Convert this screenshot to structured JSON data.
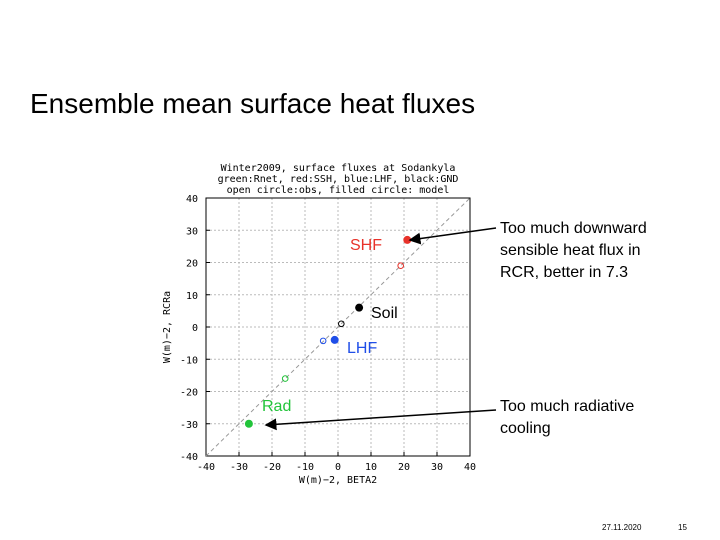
{
  "slide": {
    "title": "Ensemble mean surface heat fluxes",
    "date": "27.11.2020",
    "page": "15"
  },
  "chart_data": {
    "type": "scatter",
    "title": [
      "Winter2009, surface fluxes at Sodankyla",
      "green:Rnet, red:SSH, blue:LHF, black:GND",
      "open circle:obs, filled circle: model"
    ],
    "xlabel": "W(m)−2, BETA2",
    "ylabel": "W(m)−2, RCRa",
    "xlim": [
      -40,
      40
    ],
    "ylim": [
      -40,
      40
    ],
    "xticks": [
      -40,
      -30,
      -20,
      -10,
      0,
      10,
      20,
      30,
      40
    ],
    "yticks": [
      -40,
      -30,
      -20,
      -10,
      0,
      10,
      20,
      30,
      40
    ],
    "grid": true,
    "series": [
      {
        "color": "#e8322a",
        "marker": "filled",
        "x": [
          21
        ],
        "values": [
          27
        ]
      },
      {
        "color": "#e8322a",
        "marker": "open",
        "x": [
          19
        ],
        "values": [
          19
        ]
      },
      {
        "color": "#000000",
        "marker": "filled",
        "x": [
          6.4
        ],
        "values": [
          6
        ]
      },
      {
        "color": "#000000",
        "marker": "open",
        "x": [
          1
        ],
        "values": [
          1
        ]
      },
      {
        "color": "#1f4ee8",
        "marker": "filled",
        "x": [
          -1
        ],
        "values": [
          -4
        ]
      },
      {
        "color": "#1f4ee8",
        "marker": "open",
        "x": [
          -4.5
        ],
        "values": [
          -4.3
        ]
      },
      {
        "color": "#22c43a",
        "marker": "filled",
        "x": [
          -27
        ],
        "values": [
          -30
        ]
      },
      {
        "color": "#22c43a",
        "marker": "open",
        "x": [
          -16
        ],
        "values": [
          -16
        ]
      }
    ],
    "annotations": [
      {
        "text": "SHF",
        "color": "#e8322a"
      },
      {
        "text": "Soil",
        "color": "#000000"
      },
      {
        "text": "LHF",
        "color": "#1f4ee8"
      },
      {
        "text": "Rad",
        "color": "#22c43a"
      },
      {
        "text": [
          "Too much downward",
          "sensible heat flux in",
          "RCR, better in 7.3"
        ],
        "color": "#000000"
      },
      {
        "text": [
          "Too much radiative",
          "cooling"
        ],
        "color": "#000000"
      }
    ]
  }
}
